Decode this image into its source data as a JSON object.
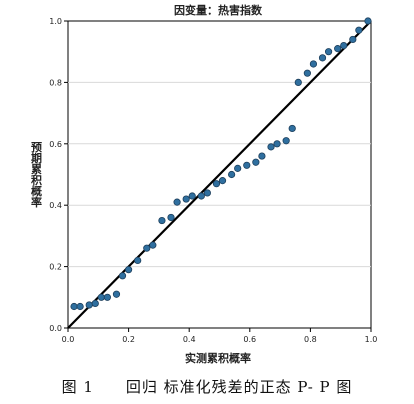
{
  "chart_data": {
    "type": "scatter",
    "title": "因变量：热害指数",
    "xlabel": "实测累积概率",
    "ylabel": "预期累积概率",
    "xlim": [
      0,
      1
    ],
    "ylim": [
      0,
      1
    ],
    "xticks": [
      "0.0",
      "0.2",
      "0.4",
      "0.6",
      "0.8",
      "1.0"
    ],
    "yticks": [
      "0.0",
      "0.2",
      "0.4",
      "0.6",
      "0.8",
      "1.0"
    ],
    "grid": true,
    "reference_line": [
      [
        0,
        0
      ],
      [
        1,
        1
      ]
    ],
    "point_color": "#2f6f9f",
    "series": [
      {
        "points": [
          [
            0.02,
            0.07
          ],
          [
            0.04,
            0.07
          ],
          [
            0.07,
            0.075
          ],
          [
            0.09,
            0.08
          ],
          [
            0.11,
            0.1
          ],
          [
            0.13,
            0.1
          ],
          [
            0.16,
            0.11
          ],
          [
            0.18,
            0.17
          ],
          [
            0.2,
            0.19
          ],
          [
            0.23,
            0.22
          ],
          [
            0.26,
            0.26
          ],
          [
            0.28,
            0.27
          ],
          [
            0.31,
            0.35
          ],
          [
            0.34,
            0.36
          ],
          [
            0.36,
            0.41
          ],
          [
            0.39,
            0.42
          ],
          [
            0.41,
            0.43
          ],
          [
            0.44,
            0.43
          ],
          [
            0.46,
            0.44
          ],
          [
            0.49,
            0.47
          ],
          [
            0.51,
            0.48
          ],
          [
            0.54,
            0.5
          ],
          [
            0.56,
            0.52
          ],
          [
            0.59,
            0.53
          ],
          [
            0.62,
            0.54
          ],
          [
            0.64,
            0.56
          ],
          [
            0.67,
            0.59
          ],
          [
            0.69,
            0.6
          ],
          [
            0.72,
            0.61
          ],
          [
            0.74,
            0.65
          ],
          [
            0.76,
            0.8
          ],
          [
            0.79,
            0.83
          ],
          [
            0.81,
            0.86
          ],
          [
            0.84,
            0.88
          ],
          [
            0.86,
            0.9
          ],
          [
            0.89,
            0.91
          ],
          [
            0.91,
            0.92
          ],
          [
            0.94,
            0.94
          ],
          [
            0.96,
            0.97
          ],
          [
            0.99,
            1.0
          ]
        ]
      }
    ]
  },
  "caption": "图 1　　回归 标准化残差的正态 P- P 图"
}
